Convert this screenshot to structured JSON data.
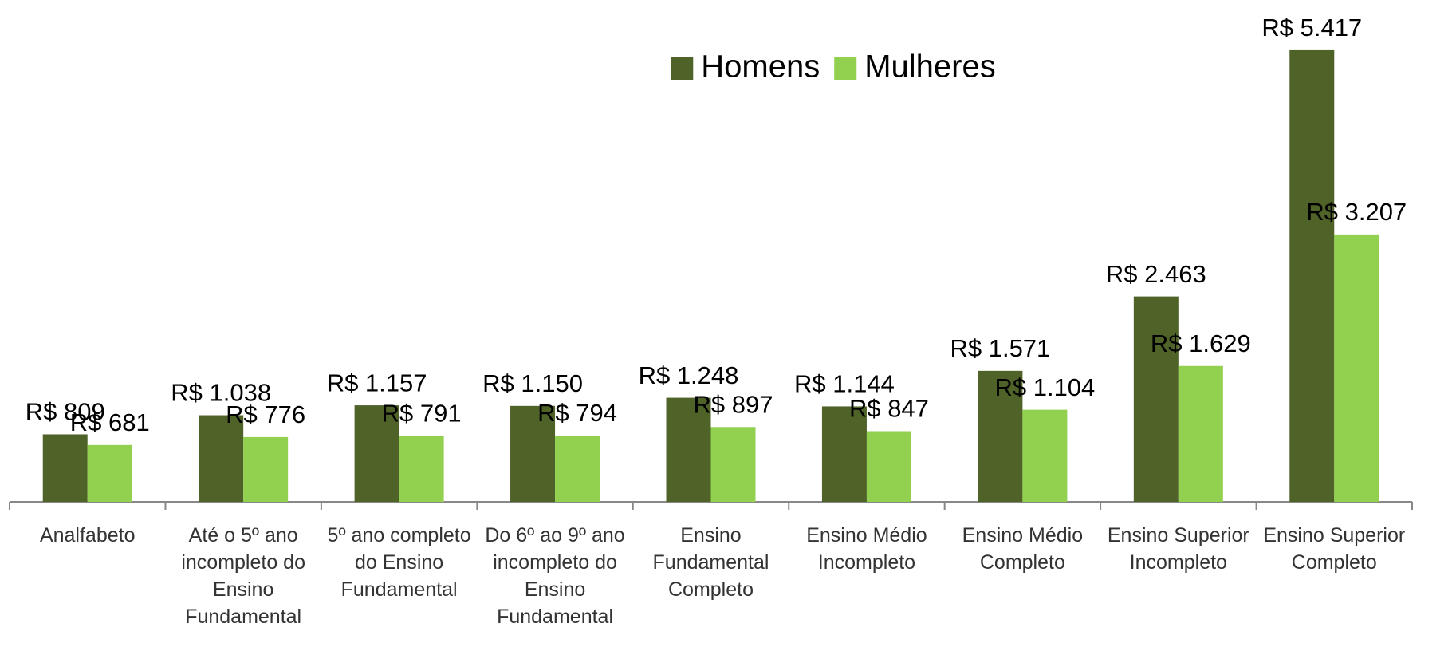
{
  "chart_data": {
    "type": "bar",
    "categories": [
      "Analfabeto",
      "Até o 5º ano incompleto do Ensino Fundamental",
      "5º ano completo do Ensino Fundamental",
      "Do 6º ao 9º ano incompleto do Ensino Fundamental",
      "Ensino Fundamental Completo",
      "Ensino Médio Incompleto",
      "Ensino Médio Completo",
      "Ensino Superior Incompleto",
      "Ensino Superior Completo"
    ],
    "series": [
      {
        "name": "Homens",
        "color": "#4f6228",
        "values": [
          809,
          1038,
          1157,
          1150,
          1248,
          1144,
          1571,
          2463,
          5417
        ],
        "value_labels": [
          "R$ 809",
          "R$ 1.038",
          "R$ 1.157",
          "R$ 1.150",
          "R$ 1.248",
          "R$ 1.144",
          "R$ 1.571",
          "R$ 2.463",
          "R$ 5.417"
        ]
      },
      {
        "name": "Mulheres",
        "color": "#92d050",
        "values": [
          681,
          776,
          791,
          794,
          897,
          847,
          1104,
          1629,
          3207
        ],
        "value_labels": [
          "R$ 681",
          "R$ 776",
          "R$ 791",
          "R$ 794",
          "R$ 897",
          "R$ 847",
          "R$ 1.104",
          "R$ 1.629",
          "R$ 3.207"
        ]
      }
    ],
    "ylim": [
      0,
      6000
    ],
    "legend": "top"
  }
}
